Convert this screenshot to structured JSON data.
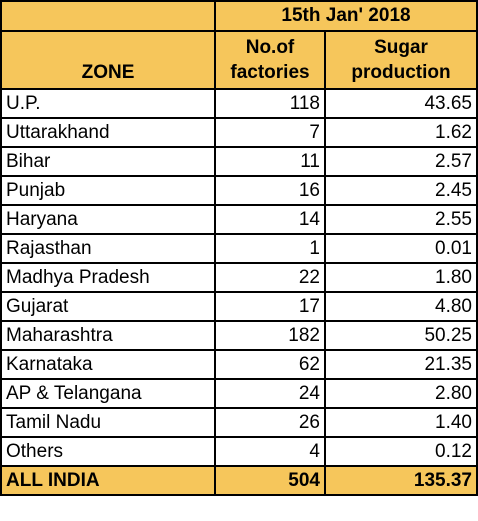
{
  "table": {
    "date_header": "15th Jan' 2018",
    "columns": {
      "zone": "ZONE",
      "factories_line1": "No.of",
      "factories_line2": "factories",
      "sugar_line1": "Sugar",
      "sugar_line2": "production"
    },
    "rows": [
      {
        "zone": "U.P.",
        "factories": "118",
        "sugar": "43.65"
      },
      {
        "zone": "Uttarakhand",
        "factories": "7",
        "sugar": "1.62"
      },
      {
        "zone": "Bihar",
        "factories": "11",
        "sugar": "2.57"
      },
      {
        "zone": "Punjab",
        "factories": "16",
        "sugar": "2.45"
      },
      {
        "zone": "Haryana",
        "factories": "14",
        "sugar": "2.55"
      },
      {
        "zone": "Rajasthan",
        "factories": "1",
        "sugar": "0.01"
      },
      {
        "zone": "Madhya Pradesh",
        "factories": "22",
        "sugar": "1.80"
      },
      {
        "zone": "Gujarat",
        "factories": "17",
        "sugar": "4.80"
      },
      {
        "zone": "Maharashtra",
        "factories": "182",
        "sugar": "50.25"
      },
      {
        "zone": "Karnataka",
        "factories": "62",
        "sugar": "21.35"
      },
      {
        "zone": "AP & Telangana",
        "factories": "24",
        "sugar": "2.80"
      },
      {
        "zone": "Tamil Nadu",
        "factories": "26",
        "sugar": "1.40"
      },
      {
        "zone": "Others",
        "factories": "4",
        "sugar": "0.12"
      }
    ],
    "total": {
      "zone": "ALL INDIA",
      "factories": "504",
      "sugar": "135.37"
    }
  },
  "colors": {
    "header_fill": "#f6c65b",
    "border": "#000000"
  }
}
